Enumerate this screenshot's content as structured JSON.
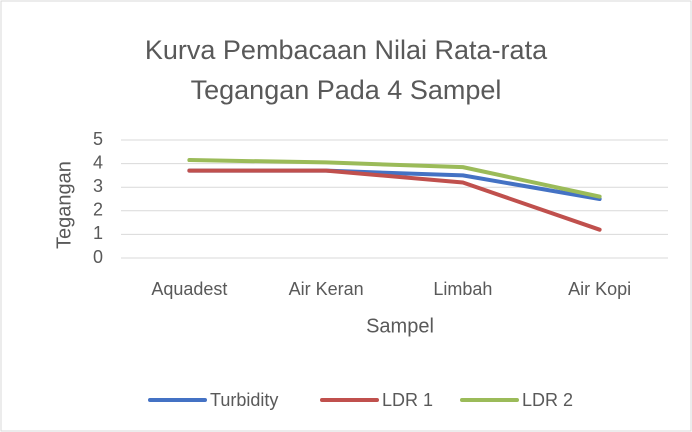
{
  "chart_data": {
    "type": "line",
    "title": "Kurva Pembacaan Nilai Rata-rata Tegangan Pada 4 Sampel",
    "x_label": "Sampel",
    "y_label": "Tegangan",
    "categories": [
      "Aquadest",
      "Air Keran",
      "Limbah",
      "Air Kopi"
    ],
    "series": [
      {
        "name": "Turbidity",
        "color": "#4472c4",
        "values": [
          3.7,
          3.7,
          3.5,
          2.5
        ]
      },
      {
        "name": "LDR 1",
        "color": "#c0504d",
        "values": [
          3.7,
          3.7,
          3.2,
          1.2
        ]
      },
      {
        "name": "LDR 2",
        "color": "#9bbb59",
        "values": [
          4.15,
          4.05,
          3.85,
          2.6
        ]
      }
    ],
    "ylim": [
      0,
      5
    ],
    "yticks": [
      0,
      1,
      2,
      3,
      4,
      5
    ],
    "grid": true,
    "legend": "bottom"
  }
}
